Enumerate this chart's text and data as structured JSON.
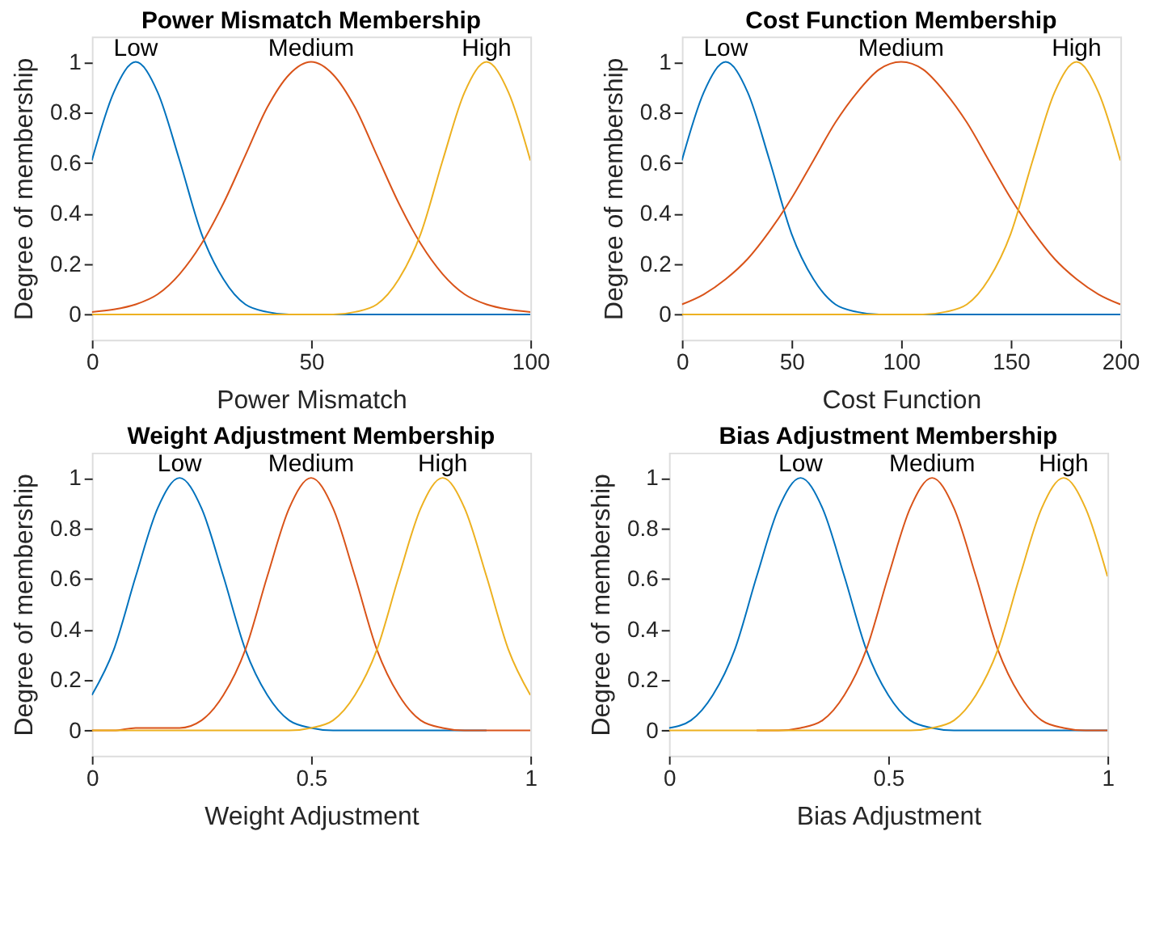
{
  "chart_data": [
    {
      "type": "line",
      "title": "Power Mismatch Membership",
      "xlabel": "Power Mismatch",
      "ylabel": "Degree of membership",
      "x": [
        0,
        5,
        10,
        15,
        20,
        25,
        30,
        35,
        40,
        45,
        50,
        55,
        60,
        65,
        70,
        75,
        80,
        85,
        90,
        95,
        100
      ],
      "xlim": [
        0,
        100
      ],
      "xticks": [
        0,
        50,
        100
      ],
      "ylim": [
        -0.1,
        1.1
      ],
      "yticks": [
        0,
        0.2,
        0.4,
        0.6,
        0.8,
        1
      ],
      "grid": false,
      "legend": false,
      "marker": "none",
      "line_style": "solid",
      "series": [
        {
          "name": "Low",
          "color": "#0072bd",
          "values": [
            0.61,
            0.88,
            1,
            0.88,
            0.61,
            0.32,
            0.14,
            0.04,
            0.01,
            0,
            0,
            0,
            0,
            0,
            0,
            0,
            0,
            0,
            0,
            0,
            0
          ]
        },
        {
          "name": "Medium",
          "color": "#d95319",
          "values": [
            0.01,
            0.02,
            0.04,
            0.08,
            0.16,
            0.28,
            0.44,
            0.63,
            0.82,
            0.95,
            1,
            0.95,
            0.82,
            0.63,
            0.44,
            0.28,
            0.16,
            0.08,
            0.04,
            0.02,
            0.01
          ]
        },
        {
          "name": "High",
          "color": "#edb120",
          "values": [
            0,
            0,
            0,
            0,
            0,
            0,
            0,
            0,
            0,
            0,
            0,
            0,
            0.01,
            0.04,
            0.14,
            0.32,
            0.61,
            0.88,
            1,
            0.88,
            0.61
          ]
        }
      ]
    },
    {
      "type": "line",
      "title": "Cost Function Membership",
      "xlabel": "Cost Function",
      "ylabel": "Degree of membership",
      "x": [
        0,
        10,
        20,
        30,
        40,
        50,
        60,
        70,
        80,
        90,
        100,
        110,
        120,
        130,
        140,
        150,
        160,
        170,
        180,
        190,
        200
      ],
      "xlim": [
        0,
        200
      ],
      "xticks": [
        0,
        50,
        100,
        150,
        200
      ],
      "ylim": [
        -0.1,
        1.1
      ],
      "yticks": [
        0,
        0.2,
        0.4,
        0.6,
        0.8,
        1
      ],
      "grid": false,
      "legend": false,
      "marker": "none",
      "line_style": "solid",
      "series": [
        {
          "name": "Low",
          "color": "#0072bd",
          "values": [
            0.61,
            0.88,
            1,
            0.88,
            0.61,
            0.32,
            0.14,
            0.04,
            0.01,
            0,
            0,
            0,
            0,
            0,
            0,
            0,
            0,
            0,
            0,
            0,
            0
          ]
        },
        {
          "name": "Medium",
          "color": "#d95319",
          "values": [
            0.04,
            0.08,
            0.14,
            0.22,
            0.33,
            0.46,
            0.61,
            0.76,
            0.88,
            0.97,
            1,
            0.97,
            0.88,
            0.76,
            0.61,
            0.46,
            0.33,
            0.22,
            0.14,
            0.08,
            0.04
          ]
        },
        {
          "name": "High",
          "color": "#edb120",
          "values": [
            0,
            0,
            0,
            0,
            0,
            0,
            0,
            0,
            0,
            0,
            0,
            0,
            0.01,
            0.04,
            0.14,
            0.32,
            0.61,
            0.88,
            1,
            0.88,
            0.61
          ]
        }
      ]
    },
    {
      "type": "line",
      "title": "Weight Adjustment Membership",
      "xlabel": "Weight Adjustment",
      "ylabel": "Degree of membership",
      "x": [
        0,
        0.05,
        0.1,
        0.15,
        0.2,
        0.25,
        0.3,
        0.35,
        0.4,
        0.45,
        0.5,
        0.55,
        0.6,
        0.65,
        0.7,
        0.75,
        0.8,
        0.85,
        0.9,
        0.95,
        1
      ],
      "xlim": [
        0,
        1
      ],
      "xticks": [
        0,
        0.5,
        1
      ],
      "ylim": [
        -0.1,
        1.1
      ],
      "yticks": [
        0,
        0.2,
        0.4,
        0.6,
        0.8,
        1
      ],
      "grid": false,
      "legend": false,
      "marker": "none",
      "line_style": "solid",
      "series": [
        {
          "name": "Low",
          "color": "#0072bd",
          "values": [
            0.14,
            0.32,
            0.61,
            0.88,
            1,
            0.88,
            0.61,
            0.32,
            0.14,
            0.04,
            0.01,
            0,
            0,
            0,
            0,
            0,
            0,
            0,
            0,
            null,
            null
          ]
        },
        {
          "name": "Medium",
          "color": "#d95319",
          "values": [
            0,
            0,
            0.01,
            0.01,
            0.01,
            0.04,
            0.14,
            0.32,
            0.61,
            0.88,
            1,
            0.88,
            0.61,
            0.32,
            0.14,
            0.04,
            0.01,
            0,
            0,
            0,
            0
          ]
        },
        {
          "name": "High",
          "color": "#edb120",
          "values": [
            0,
            0,
            0,
            0,
            0,
            0,
            0,
            0,
            0,
            0,
            0.01,
            0.04,
            0.14,
            0.32,
            0.61,
            0.88,
            1,
            0.88,
            0.61,
            0.32,
            0.14
          ]
        }
      ]
    },
    {
      "type": "line",
      "title": "Bias Adjustment Membership",
      "xlabel": "Bias Adjustment",
      "ylabel": "Degree of membership",
      "x": [
        0,
        0.05,
        0.1,
        0.15,
        0.2,
        0.25,
        0.3,
        0.35,
        0.4,
        0.45,
        0.5,
        0.55,
        0.6,
        0.65,
        0.7,
        0.75,
        0.8,
        0.85,
        0.9,
        0.95,
        1
      ],
      "xlim": [
        0,
        1
      ],
      "xticks": [
        0,
        0.5,
        1
      ],
      "ylim": [
        -0.1,
        1.1
      ],
      "yticks": [
        0,
        0.2,
        0.4,
        0.6,
        0.8,
        1
      ],
      "grid": false,
      "legend": false,
      "marker": "none",
      "line_style": "solid",
      "series": [
        {
          "name": "Low",
          "color": "#0072bd",
          "values": [
            0.01,
            0.04,
            0.14,
            0.32,
            0.61,
            0.88,
            1,
            0.88,
            0.61,
            0.32,
            0.14,
            0.04,
            0.01,
            0,
            0,
            0,
            0,
            0,
            0,
            0,
            0
          ]
        },
        {
          "name": "Medium",
          "color": "#d95319",
          "values": [
            null,
            null,
            null,
            null,
            0,
            0,
            0.01,
            0.04,
            0.14,
            0.32,
            0.61,
            0.88,
            1,
            0.88,
            0.61,
            0.32,
            0.14,
            0.04,
            0.01,
            0,
            0
          ]
        },
        {
          "name": "High",
          "color": "#edb120",
          "values": [
            0,
            0,
            0,
            0,
            0,
            0,
            0,
            0,
            0,
            0,
            0,
            0,
            0.01,
            0.04,
            0.14,
            0.32,
            0.61,
            0.88,
            1,
            0.88,
            0.61
          ]
        }
      ]
    }
  ]
}
